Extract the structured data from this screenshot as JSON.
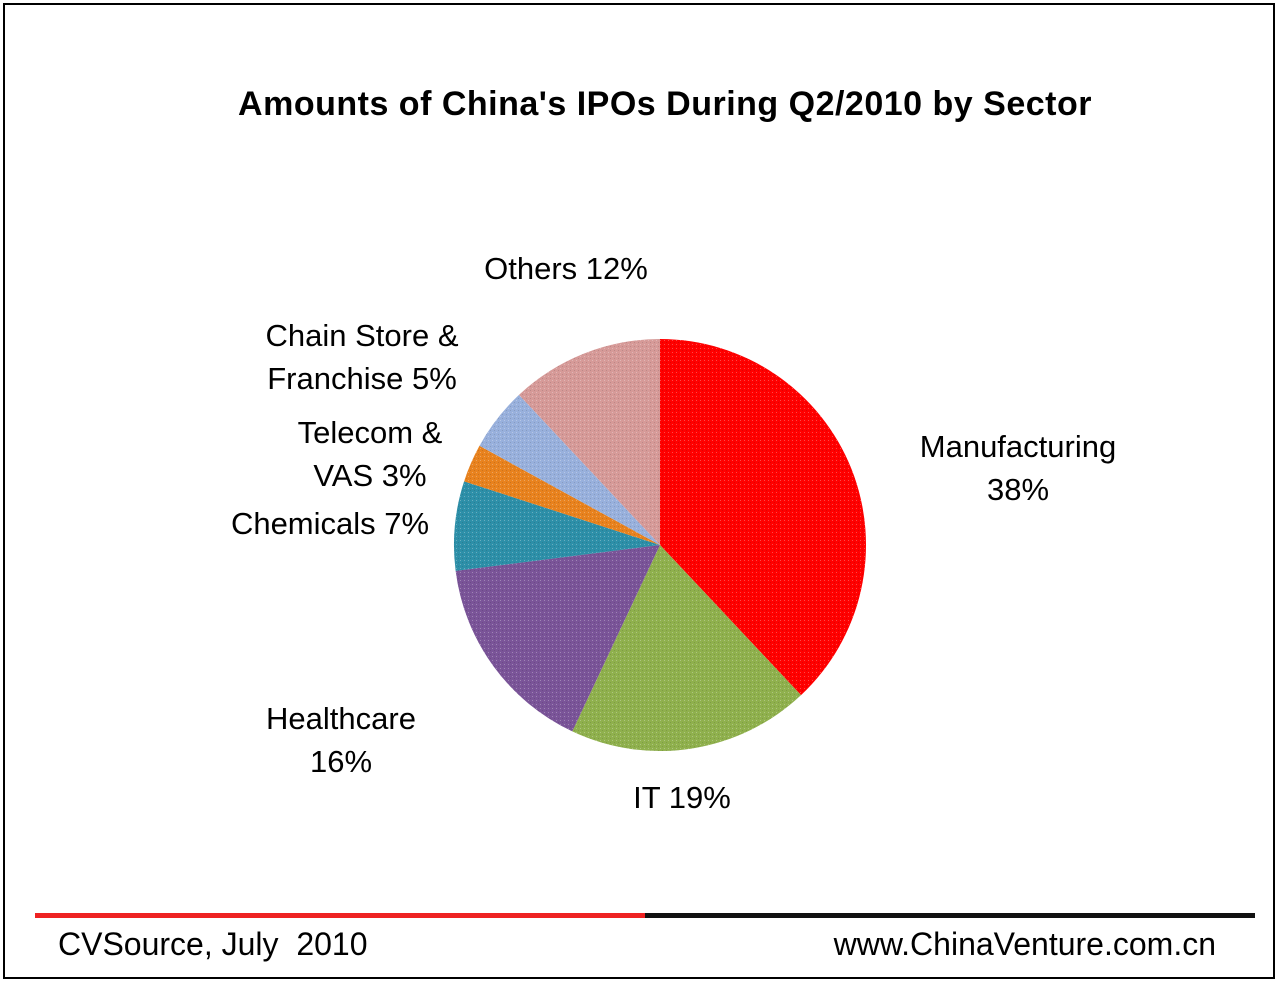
{
  "chart_data": {
    "type": "pie",
    "title": "Amounts of China's IPOs During Q2/2010  by Sector",
    "slices": [
      {
        "label_lines": [
          "Manufacturing",
          "38%"
        ],
        "category": "Manufacturing",
        "value": 38,
        "color": "#ff0000"
      },
      {
        "label_lines": [
          "IT 19%"
        ],
        "category": "IT",
        "value": 19,
        "color": "#8fb04d"
      },
      {
        "label_lines": [
          "Healthcare",
          "16%"
        ],
        "category": "Healthcare",
        "value": 16,
        "color": "#7a5498"
      },
      {
        "label_lines": [
          "Chemicals 7%"
        ],
        "category": "Chemicals",
        "value": 7,
        "color": "#2d8fa8"
      },
      {
        "label_lines": [
          "Telecom &",
          "VAS 3%"
        ],
        "category": "Telecom & VAS",
        "value": 3,
        "color": "#e8821e"
      },
      {
        "label_lines": [
          "Chain Store &",
          "Franchise 5%"
        ],
        "category": "Chain Store & Franchise",
        "value": 5,
        "color": "#98b0dc"
      },
      {
        "label_lines": [
          "Others 12%"
        ],
        "category": "Others",
        "value": 12,
        "color": "#d69a98"
      }
    ]
  },
  "footer": {
    "source": "CVSource, July  2010",
    "website": "www.ChinaVenture.com.cn"
  }
}
